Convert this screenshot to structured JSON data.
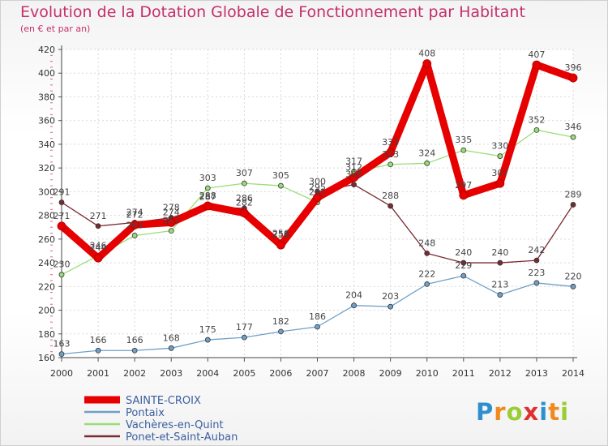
{
  "chart_data": {
    "type": "line",
    "title": "Evolution de la Dotation Globale de Fonctionnement par Habitant",
    "subtitle": "(en € et par an)",
    "x": [
      "2000",
      "2001",
      "2002",
      "2003",
      "2004",
      "2005",
      "2006",
      "2007",
      "2008",
      "2009",
      "2010",
      "2011",
      "2012",
      "2013",
      "2014"
    ],
    "ylim": [
      160,
      420
    ],
    "yticks": [
      160,
      180,
      200,
      220,
      240,
      260,
      280,
      300,
      320,
      340,
      360,
      380,
      400,
      420
    ],
    "grid": true,
    "legend_position": "bottom-left",
    "series": [
      {
        "name": "SAINTE-CROIX",
        "color": "#e60000",
        "values": [
          271,
          244,
          272,
          274,
          288,
          282,
          255,
          295,
          312,
          333,
          408,
          297,
          307,
          407,
          396
        ]
      },
      {
        "name": "Pontaix",
        "color": "#6fa0c8",
        "values": [
          163,
          166,
          166,
          168,
          175,
          177,
          182,
          186,
          204,
          203,
          222,
          229,
          213,
          223,
          220
        ]
      },
      {
        "name": "Vachères-en-Quint",
        "color": "#99dd77",
        "values": [
          230,
          246,
          263,
          267,
          303,
          307,
          305,
          291,
          317,
          323,
          324,
          335,
          330,
          352,
          346
        ]
      },
      {
        "name": "Ponet-et-Saint-Auban",
        "color": "#7a2a32",
        "values": [
          291,
          271,
          274,
          278,
          287,
          286,
          256,
          300,
          306,
          288,
          248,
          240,
          240,
          242,
          289
        ]
      }
    ]
  },
  "brand": {
    "letters": [
      "P",
      "r",
      "o",
      "x",
      "i",
      "t",
      "i"
    ],
    "colors": [
      "#2d8fd0",
      "#f08a1c",
      "#9acd32",
      "#e03030",
      "#2d8fd0",
      "#f08a1c",
      "#9acd32"
    ]
  }
}
